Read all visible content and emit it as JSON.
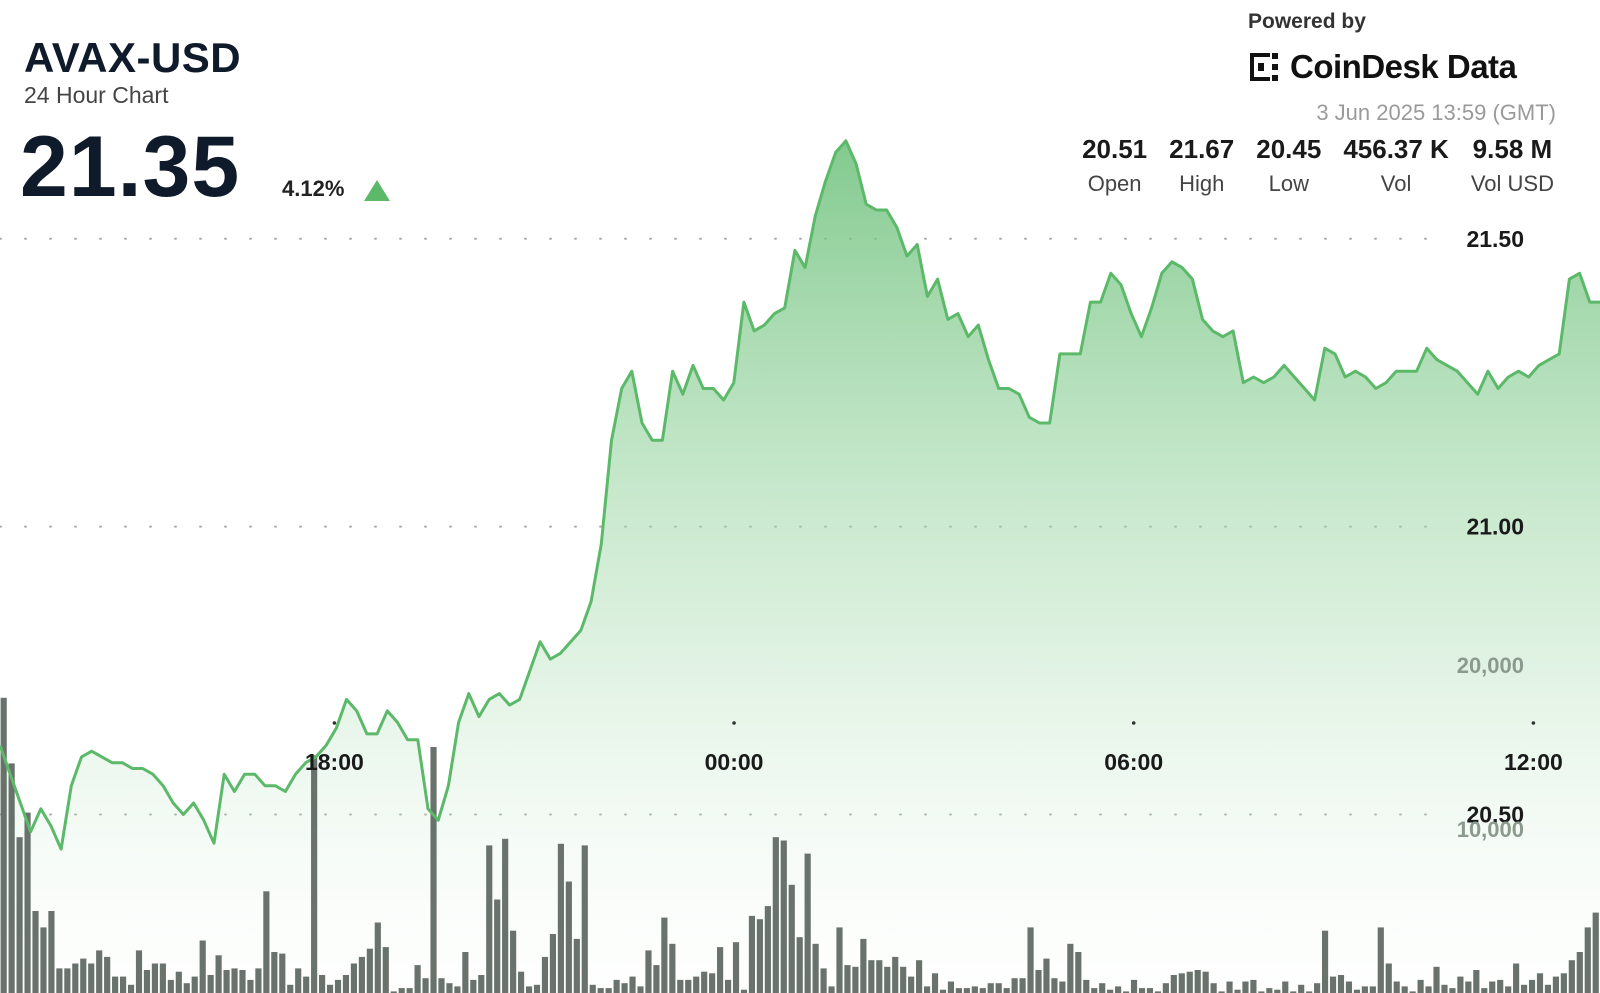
{
  "header": {
    "pair": "AVAX-USD",
    "subtitle": "24 Hour Chart",
    "price": "21.35",
    "change": "4.12%",
    "powered_by": "Powered by",
    "brand": "CoinDesk Data",
    "timestamp": "3 Jun 2025 13:59 (GMT)"
  },
  "stats": [
    {
      "value": "20.51",
      "label": "Open"
    },
    {
      "value": "21.67",
      "label": "High"
    },
    {
      "value": "20.45",
      "label": "Low"
    },
    {
      "value": "456.37 K",
      "label": "Vol"
    },
    {
      "value": "9.58 M",
      "label": "Vol USD"
    }
  ],
  "colors": {
    "line": "#5cb96a",
    "fill_top": "#6cc07a",
    "volume_bar": "#5c6660",
    "text_dark": "#0f1b2a",
    "grid_dot": "#aaaaaa"
  },
  "icons": {
    "arrow": "triangle-up-icon",
    "brand": "coindesk-logo-icon"
  },
  "chart_data": {
    "type": "line",
    "title": "AVAX-USD",
    "xlabel": "",
    "ylabel": "",
    "x_ticks": [
      "18:00",
      "00:00",
      "06:00",
      "12:00"
    ],
    "x_tick_hours": [
      18,
      24,
      30,
      36
    ],
    "y_ticks": [
      20.5,
      21.0,
      21.5
    ],
    "y_tick_labels": [
      "20.50",
      "21.00",
      "21.50"
    ],
    "ylim": [
      20.19,
      21.88
    ],
    "volume_ticks": [
      10000,
      20000
    ],
    "volume_tick_labels": [
      "10,000",
      "20,000"
    ],
    "grid": "dotted horizontal",
    "series": [
      {
        "values": [
          20.62,
          20.57,
          20.52,
          20.47,
          20.51,
          20.48,
          20.44,
          20.55,
          20.6,
          20.61,
          20.6,
          20.59,
          20.59,
          20.58,
          20.58,
          20.57,
          20.55,
          20.52,
          20.5,
          20.52,
          20.49,
          20.45,
          20.57,
          20.54,
          20.57,
          20.57,
          20.55,
          20.55,
          20.54,
          20.57,
          20.59,
          20.6,
          20.62,
          20.65,
          20.7,
          20.68,
          20.64,
          20.64,
          20.68,
          20.66,
          20.63,
          20.63,
          20.51,
          20.49,
          20.55,
          20.66,
          20.71,
          20.67,
          20.7,
          20.71,
          20.69,
          20.7,
          20.75,
          20.8,
          20.77,
          20.78,
          20.8,
          20.82,
          20.87,
          20.97,
          21.15,
          21.24,
          21.27,
          21.18,
          21.15,
          21.15,
          21.27,
          21.23,
          21.28,
          21.24,
          21.24,
          21.22,
          21.25,
          21.39,
          21.34,
          21.35,
          21.37,
          21.38,
          21.48,
          21.45,
          21.54,
          21.6,
          21.65,
          21.67,
          21.63,
          21.56,
          21.55,
          21.55,
          21.52,
          21.47,
          21.49,
          21.4,
          21.43,
          21.36,
          21.37,
          21.33,
          21.35,
          21.29,
          21.24,
          21.24,
          21.23,
          21.19,
          21.18,
          21.18,
          21.3,
          21.3,
          21.3,
          21.39,
          21.39,
          21.44,
          21.42,
          21.37,
          21.33,
          21.38,
          21.44,
          21.46,
          21.45,
          21.43,
          21.36,
          21.34,
          21.33,
          21.34,
          21.25,
          21.26,
          21.25,
          21.26,
          21.28,
          21.26,
          21.24,
          21.22,
          21.31,
          21.3,
          21.26,
          21.27,
          21.26,
          21.24,
          21.25,
          21.27,
          21.27,
          21.27,
          21.31,
          21.29,
          21.28,
          21.27,
          21.25,
          21.23,
          21.27,
          21.24,
          21.26,
          21.27,
          21.26,
          21.28,
          21.29,
          21.3,
          21.43,
          21.44,
          21.39,
          21.39
        ]
      }
    ],
    "volume": [
      18000,
      14000,
      9500,
      11000,
      5000,
      4000,
      5000,
      1500,
      1500,
      1800,
      2100,
      1800,
      2600,
      2200,
      1000,
      1000,
      500,
      2600,
      1400,
      1800,
      1800,
      800,
      1300,
      600,
      1000,
      3200,
      1100,
      2300,
      1400,
      1500,
      1400,
      800,
      1500,
      6200,
      2500,
      2400,
      500,
      1500,
      1000,
      14500,
      1100,
      500,
      800,
      1100,
      1800,
      2200,
      2700,
      4300,
      2800,
      100,
      300,
      300,
      1700,
      900,
      15000,
      900,
      600,
      400,
      2500,
      800,
      1100,
      9000,
      5700,
      9400,
      3800,
      1300,
      400,
      500,
      2200,
      3600,
      9100,
      6800,
      3300,
      9000,
      500,
      300,
      300,
      800,
      600,
      1000,
      400,
      2600,
      1700,
      4600,
      3000,
      800,
      800,
      1000,
      1300,
      1200,
      2800,
      800,
      3100,
      200,
      4700,
      4500,
      5300,
      9500,
      9300,
      6600,
      3400,
      8500,
      3000,
      1500,
      400,
      4000,
      1700,
      1600,
      3300,
      2000,
      2000,
      1600,
      2200,
      1600,
      1000,
      2000,
      400,
      1200,
      200,
      700,
      300,
      300,
      400,
      300,
      600,
      600,
      300,
      900,
      900,
      4000,
      1400,
      2100,
      900,
      700,
      3000,
      2500,
      800,
      300,
      600,
      200,
      400,
      100,
      800,
      300,
      300,
      100,
      600,
      1100,
      1200,
      1300,
      1400,
      1300,
      600,
      100,
      700,
      200,
      700,
      800,
      100,
      300,
      200,
      700,
      100,
      500,
      100,
      600,
      3800,
      1000,
      1100,
      700,
      200,
      400,
      400,
      4000,
      1800,
      700,
      400,
      100,
      800,
      400,
      1600,
      500,
      300,
      1000,
      700,
      1400,
      300,
      700,
      800,
      400,
      1800,
      500,
      800,
      1200,
      500,
      1000,
      1200,
      2000,
      2500,
      4000,
      4900
    ]
  }
}
